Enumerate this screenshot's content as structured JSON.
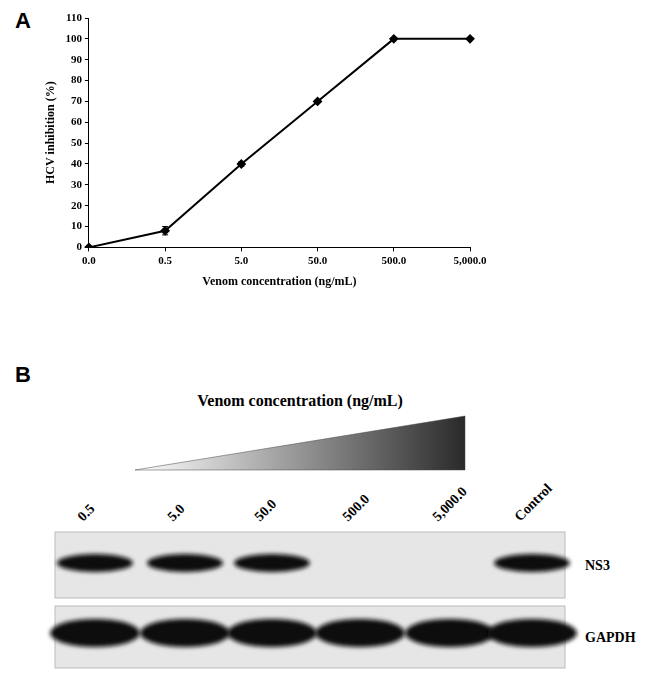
{
  "chart_data": {
    "type": "line",
    "annotations": [
      "A"
    ],
    "x_label": "Venom concentration (ng/mL)",
    "y_label": "HCV inhibition (%)",
    "categories": [
      "0.0",
      "0.5",
      "5.0",
      "50.0",
      "500.0",
      "5,000.0"
    ],
    "values": [
      0,
      8,
      40,
      70,
      100,
      100
    ],
    "errors": [
      0,
      2,
      1,
      0.5,
      0,
      0
    ],
    "color": "#000000",
    "marker": "diamond",
    "line_style": "solid",
    "ylim": [
      0,
      110
    ],
    "yticks": [
      0,
      10,
      20,
      30,
      40,
      50,
      60,
      70,
      80,
      90,
      100,
      110
    ],
    "grid": false
  },
  "blot": {
    "label": "B",
    "title": "Venom concentration (ng/mL)",
    "lanes": [
      "0.5",
      "5.0",
      "50.0",
      "500.0",
      "5,000.0",
      "Control"
    ],
    "rows": [
      {
        "name": "NS3",
        "bands": [
          true,
          true,
          true,
          false,
          false,
          true
        ]
      },
      {
        "name": "GAPDH",
        "bands": [
          true,
          true,
          true,
          true,
          true,
          true
        ]
      }
    ]
  }
}
